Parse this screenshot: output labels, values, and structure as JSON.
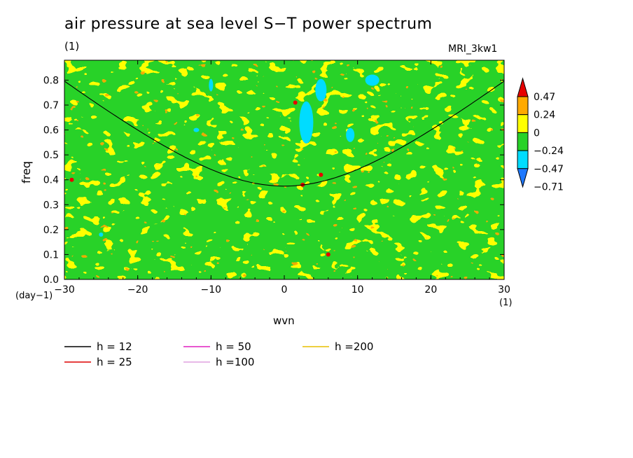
{
  "chart_data": {
    "type": "heatmap",
    "title": "air pressure at sea level S−T power spectrum",
    "units_label": "(1)",
    "model_label": "MRI_3kw1",
    "xlabel": "wvn",
    "ylabel": "freq",
    "x_unit_label": "(1)",
    "y_unit_label": "(day−1)",
    "xlim": [
      -30,
      30
    ],
    "ylim": [
      0.0,
      0.88
    ],
    "x_ticks": [
      -30,
      -20,
      -10,
      0,
      10,
      20,
      30
    ],
    "x_tick_labels": [
      "−30",
      "−20",
      "−10",
      "0",
      "10",
      "20",
      "30"
    ],
    "y_ticks": [
      0.0,
      0.1,
      0.2,
      0.3,
      0.4,
      0.5,
      0.6,
      0.7,
      0.8
    ],
    "y_tick_labels": [
      "0.0",
      "0.1",
      "0.2",
      "0.3",
      "0.4",
      "0.5",
      "0.6",
      "0.7",
      "0.8"
    ],
    "colorbar": {
      "levels": [
        -0.71,
        -0.47,
        -0.24,
        0,
        0.24,
        0.47
      ],
      "level_labels": [
        "−0.71",
        "−0.47",
        "−0.24",
        "0",
        "0.24",
        "0.47"
      ],
      "colors": [
        "#1e78ff",
        "#00dcff",
        "#28d228",
        "#ffff00",
        "#ffaa00",
        "#e60000"
      ]
    },
    "series": [
      {
        "name": "h = 12",
        "color": "#000000",
        "h": 12
      },
      {
        "name": "h = 25",
        "color": "#dd0000",
        "h": 25
      },
      {
        "name": "h = 50",
        "color": "#e020c0",
        "h": 50
      },
      {
        "name": "h =100",
        "color": "#e0a0e0",
        "h": 100
      },
      {
        "name": "h =200",
        "color": "#e8c000",
        "h": 200
      }
    ],
    "legend_position": "bottom"
  }
}
